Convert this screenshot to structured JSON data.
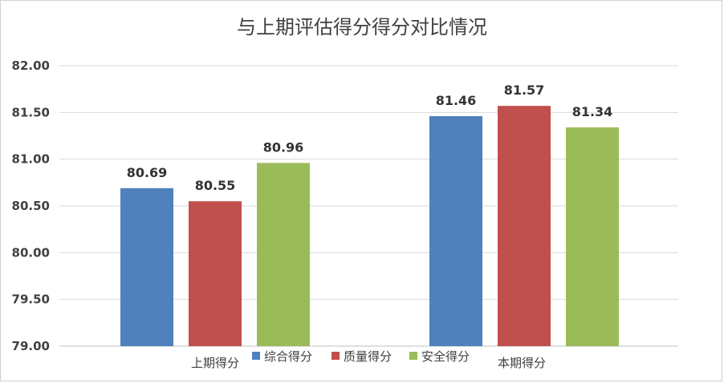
{
  "chart_data": {
    "type": "bar",
    "title": "与上期评估得分得分对比情况",
    "categories": [
      "上期得分",
      "本期得分"
    ],
    "series": [
      {
        "name": "综合得分",
        "color": "#4f81bd",
        "values": [
          80.69,
          81.46
        ]
      },
      {
        "name": "质量得分",
        "color": "#c0504d",
        "values": [
          80.55,
          81.57
        ]
      },
      {
        "name": "安全得分",
        "color": "#9bbb59",
        "values": [
          80.96,
          81.34
        ]
      }
    ],
    "ylim": [
      79.0,
      82.0
    ],
    "yticks": [
      "79.00",
      "79.50",
      "80.00",
      "80.50",
      "81.00",
      "81.50",
      "82.00"
    ],
    "grid": true,
    "legend": "bottom",
    "data_labels": true
  }
}
